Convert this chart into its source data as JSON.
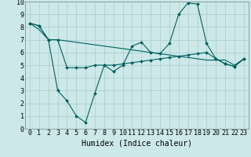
{
  "xlabel": "Humidex (Indice chaleur)",
  "xlim": [
    -0.5,
    23.5
  ],
  "ylim": [
    0,
    10
  ],
  "xticks": [
    0,
    1,
    2,
    3,
    4,
    5,
    6,
    7,
    8,
    9,
    10,
    11,
    12,
    13,
    14,
    15,
    16,
    17,
    18,
    19,
    20,
    21,
    22,
    23
  ],
  "yticks": [
    0,
    1,
    2,
    3,
    4,
    5,
    6,
    7,
    8,
    9,
    10
  ],
  "bg_color": "#cce8e8",
  "grid_color": "#aacccc",
  "line_color": "#006060",
  "line1_x": [
    0,
    1,
    2,
    3,
    4,
    5,
    6,
    7,
    8,
    9,
    10,
    11,
    12,
    13,
    14,
    15,
    16,
    17,
    18,
    19,
    20,
    21,
    22,
    23
  ],
  "line1_y": [
    8.3,
    8.1,
    7.0,
    3.0,
    2.2,
    1.0,
    0.5,
    2.8,
    5.0,
    4.5,
    5.0,
    6.5,
    6.8,
    6.0,
    5.9,
    6.7,
    9.0,
    9.9,
    9.8,
    6.7,
    5.5,
    5.1,
    4.9,
    5.5
  ],
  "line2_x": [
    0,
    1,
    2,
    3,
    4,
    5,
    6,
    7,
    8,
    9,
    10,
    11,
    12,
    13,
    14,
    15,
    16,
    17,
    18,
    19,
    20,
    21,
    22,
    23
  ],
  "line2_y": [
    8.3,
    8.1,
    7.0,
    7.0,
    4.8,
    4.8,
    4.8,
    5.0,
    5.0,
    5.0,
    5.1,
    5.2,
    5.3,
    5.4,
    5.5,
    5.6,
    5.7,
    5.8,
    5.9,
    6.0,
    5.5,
    5.1,
    4.9,
    5.5
  ],
  "line3_x": [
    0,
    1,
    2,
    3,
    4,
    5,
    6,
    7,
    8,
    9,
    10,
    11,
    12,
    13,
    14,
    15,
    16,
    17,
    18,
    19,
    20,
    21,
    22,
    23
  ],
  "line3_y": [
    8.3,
    7.8,
    7.0,
    7.0,
    6.9,
    6.8,
    6.7,
    6.6,
    6.5,
    6.4,
    6.3,
    6.2,
    6.1,
    6.0,
    5.9,
    5.8,
    5.7,
    5.6,
    5.5,
    5.4,
    5.4,
    5.4,
    5.0,
    5.5
  ],
  "tick_fontsize": 6.0,
  "xlabel_fontsize": 7.0
}
